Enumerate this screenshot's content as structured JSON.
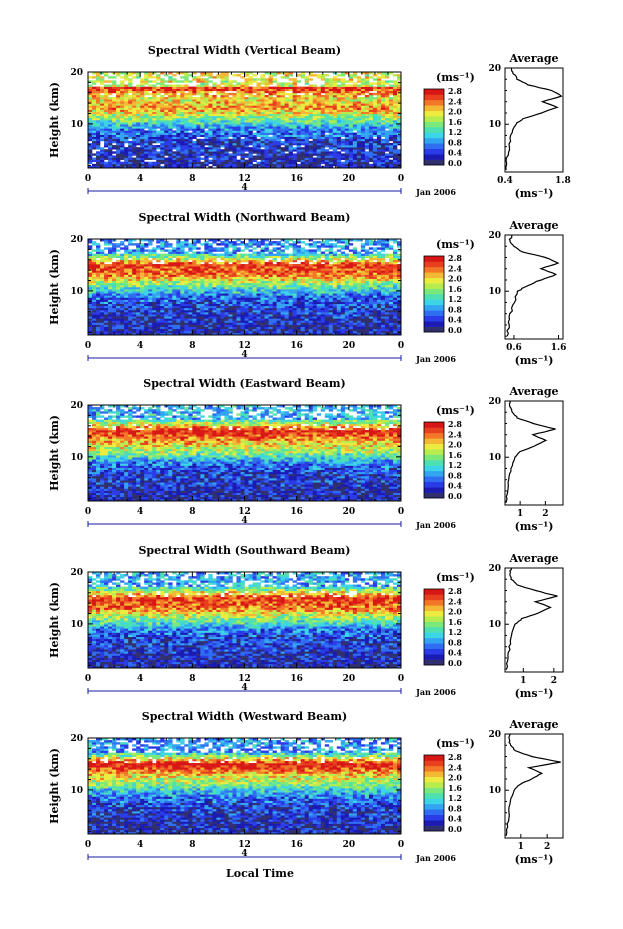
{
  "colorbar": {
    "unit": "(ms⁻¹)",
    "ticks": [
      "0.0",
      "0.4",
      "0.8",
      "1.2",
      "1.6",
      "2.0",
      "2.4",
      "2.8"
    ],
    "colors": [
      "#30306e",
      "#1b1bb4",
      "#2a3ce8",
      "#2f6ef0",
      "#33a4f2",
      "#3cd4e6",
      "#4ee0b0",
      "#7ae87a",
      "#b8ec4e",
      "#ecec40",
      "#f4b834",
      "#f27828",
      "#e8401e",
      "#d81616"
    ]
  },
  "chart_data": [
    {
      "type": "heatmap",
      "title": "Spectral Width (Vertical Beam)",
      "ylabel": "Height (km)",
      "x_ticks": [
        "0",
        "4",
        "8",
        "12",
        "16",
        "20",
        "0"
      ],
      "y_ticks": [
        "20",
        "10"
      ],
      "date_tick": "4",
      "date_label": "Jan 2006",
      "xlim": [
        0,
        24
      ],
      "ylim": [
        1.5,
        20
      ],
      "zlim": [
        0.0,
        2.8
      ],
      "band_altitudes_km": [
        17,
        15,
        13,
        11,
        9,
        7,
        5,
        3
      ],
      "band_mean_width": [
        2.6,
        1.9,
        2.2,
        1.5,
        0.8,
        0.5,
        0.4,
        0.3
      ],
      "profile": {
        "title": "Average",
        "x_ticks": [
          "0.4",
          "1.8"
        ],
        "xlim": [
          0.4,
          1.8
        ],
        "y_ticks": [
          "20",
          "10"
        ],
        "xlabel": "(ms⁻¹)",
        "height_km": [
          2,
          4,
          6,
          8,
          10,
          11,
          12,
          13,
          14,
          15,
          16,
          17,
          18,
          19,
          20
        ],
        "width": [
          0.42,
          0.45,
          0.5,
          0.55,
          0.65,
          0.85,
          1.3,
          1.65,
          1.3,
          1.75,
          1.55,
          0.95,
          0.7,
          0.6,
          0.55
        ]
      }
    },
    {
      "type": "heatmap",
      "title": "Spectral Width (Northward Beam)",
      "ylabel": "Height (km)",
      "x_ticks": [
        "0",
        "4",
        "8",
        "12",
        "16",
        "20",
        "0"
      ],
      "y_ticks": [
        "20",
        "10"
      ],
      "date_tick": "4",
      "date_label": "Jan 2006",
      "xlim": [
        0,
        24
      ],
      "ylim": [
        1.5,
        20
      ],
      "zlim": [
        0.0,
        2.8
      ],
      "band_altitudes_km": [
        17,
        15,
        13,
        11,
        9,
        7,
        5,
        3
      ],
      "band_mean_width": [
        1.2,
        2.6,
        2.3,
        1.4,
        0.7,
        0.5,
        0.4,
        0.3
      ],
      "profile": {
        "title": "Average",
        "x_ticks": [
          "0.6",
          "1.6"
        ],
        "xlim": [
          0.4,
          1.7
        ],
        "y_ticks": [
          "20",
          "10"
        ],
        "xlabel": "(ms⁻¹)",
        "height_km": [
          2,
          4,
          6,
          8,
          10,
          11,
          12,
          13,
          14,
          15,
          16,
          17,
          18,
          19,
          20
        ],
        "width": [
          0.45,
          0.48,
          0.52,
          0.6,
          0.7,
          0.9,
          1.2,
          1.55,
          1.2,
          1.6,
          1.3,
          0.8,
          0.6,
          0.5,
          0.55
        ]
      }
    },
    {
      "type": "heatmap",
      "title": "Spectral Width (Eastward Beam)",
      "ylabel": "Height (km)",
      "x_ticks": [
        "0",
        "4",
        "8",
        "12",
        "16",
        "20",
        "0"
      ],
      "y_ticks": [
        "20",
        "10"
      ],
      "date_tick": "4",
      "date_label": "Jan 2006",
      "xlim": [
        0,
        24
      ],
      "ylim": [
        1.5,
        20
      ],
      "zlim": [
        0.0,
        2.8
      ],
      "band_altitudes_km": [
        17,
        15,
        13,
        11,
        9,
        7,
        5,
        3
      ],
      "band_mean_width": [
        1.4,
        2.7,
        2.1,
        1.6,
        0.8,
        0.5,
        0.4,
        0.3
      ],
      "profile": {
        "title": "Average",
        "x_ticks": [
          "1",
          "2"
        ],
        "xlim": [
          0.4,
          2.7
        ],
        "y_ticks": [
          "20",
          "10"
        ],
        "xlabel": "(ms⁻¹)",
        "height_km": [
          2,
          4,
          6,
          8,
          10,
          11,
          12,
          13,
          14,
          15,
          16,
          17,
          18,
          19,
          20
        ],
        "width": [
          0.45,
          0.5,
          0.55,
          0.65,
          0.8,
          1.0,
          1.6,
          2.0,
          1.5,
          2.4,
          1.5,
          0.9,
          0.7,
          0.6,
          0.6
        ]
      }
    },
    {
      "type": "heatmap",
      "title": "Spectral Width (Southward Beam)",
      "ylabel": "Height (km)",
      "x_ticks": [
        "0",
        "4",
        "8",
        "12",
        "16",
        "20",
        "0"
      ],
      "y_ticks": [
        "20",
        "10"
      ],
      "date_tick": "4",
      "date_label": "Jan 2006",
      "xlim": [
        0,
        24
      ],
      "ylim": [
        1.5,
        20
      ],
      "zlim": [
        0.0,
        2.8
      ],
      "band_altitudes_km": [
        17,
        15,
        13,
        11,
        9,
        7,
        5,
        3
      ],
      "band_mean_width": [
        1.3,
        2.6,
        2.3,
        1.5,
        0.8,
        0.5,
        0.4,
        0.3
      ],
      "profile": {
        "title": "Average",
        "x_ticks": [
          "1",
          "2"
        ],
        "xlim": [
          0.4,
          2.3
        ],
        "y_ticks": [
          "20",
          "10"
        ],
        "xlabel": "(ms⁻¹)",
        "height_km": [
          2,
          4,
          6,
          8,
          10,
          11,
          12,
          13,
          14,
          15,
          16,
          17,
          18,
          19,
          20
        ],
        "width": [
          0.45,
          0.5,
          0.55,
          0.6,
          0.75,
          0.95,
          1.5,
          1.9,
          1.4,
          2.1,
          1.4,
          0.8,
          0.6,
          0.55,
          0.6
        ]
      }
    },
    {
      "type": "heatmap",
      "title": "Spectral Width (Westward Beam)",
      "ylabel": "Height (km)",
      "x_ticks": [
        "0",
        "4",
        "8",
        "12",
        "16",
        "20",
        "0"
      ],
      "y_ticks": [
        "20",
        "10"
      ],
      "date_tick": "4",
      "date_label": "Jan 2006",
      "xlim": [
        0,
        24
      ],
      "ylim": [
        1.5,
        20
      ],
      "zlim": [
        0.0,
        2.8
      ],
      "band_altitudes_km": [
        17,
        15,
        13,
        11,
        9,
        7,
        5,
        3
      ],
      "band_mean_width": [
        1.2,
        2.8,
        2.0,
        1.5,
        0.8,
        0.5,
        0.4,
        0.3
      ],
      "profile": {
        "title": "Average",
        "x_ticks": [
          "1",
          "2"
        ],
        "xlim": [
          0.4,
          2.6
        ],
        "y_ticks": [
          "20",
          "10"
        ],
        "xlabel": "(ms⁻¹)",
        "height_km": [
          2,
          4,
          6,
          8,
          10,
          11,
          12,
          13,
          14,
          15,
          16,
          17,
          18,
          19,
          20
        ],
        "width": [
          0.45,
          0.5,
          0.55,
          0.6,
          0.75,
          0.95,
          1.4,
          1.8,
          1.3,
          2.5,
          1.4,
          0.8,
          0.6,
          0.55,
          0.6
        ]
      }
    }
  ],
  "xaxis_label": "Local Time"
}
